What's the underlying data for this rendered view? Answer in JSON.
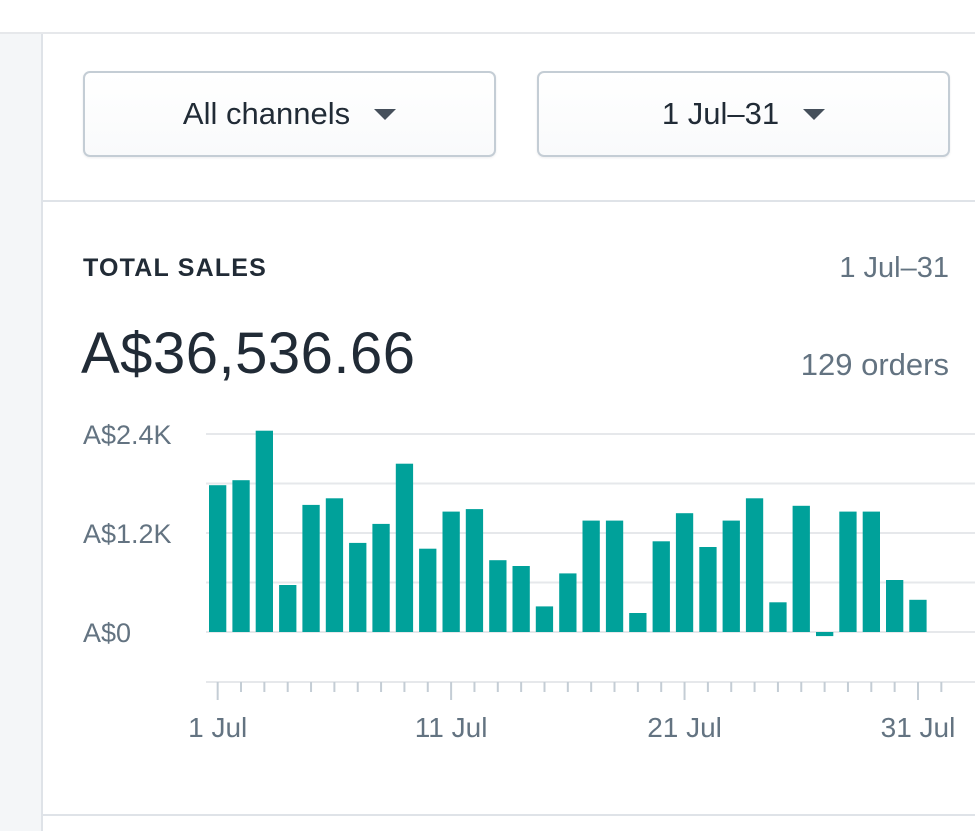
{
  "filters": {
    "channel_label": "All channels",
    "range_label": "1 Jul–31"
  },
  "card": {
    "title": "TOTAL SALES",
    "range": "1 Jul–31",
    "total": "A$36,536.66",
    "orders": "129 orders"
  },
  "colors": {
    "bar": "#00a19a",
    "grid": "#e6e8eb",
    "axis": "#c4cdd5"
  },
  "chart_data": {
    "type": "bar",
    "x_label_positions": [
      1,
      11,
      21,
      31
    ],
    "x_labels": [
      "1 Jul",
      "11 Jul",
      "21 Jul",
      "31 Jul"
    ],
    "y_ticks": [
      {
        "value": 0,
        "label": "A$0"
      },
      {
        "value": 1200,
        "label": "A$1.2K"
      },
      {
        "value": 2400,
        "label": "A$2.4K"
      }
    ],
    "ylim": [
      0,
      2400
    ],
    "categories": [
      1,
      2,
      3,
      4,
      5,
      6,
      7,
      8,
      9,
      10,
      11,
      12,
      13,
      14,
      15,
      16,
      17,
      18,
      19,
      20,
      21,
      22,
      23,
      24,
      25,
      26,
      27,
      28,
      29,
      30,
      31,
      32
    ],
    "values": [
      1780,
      1840,
      2440,
      570,
      1540,
      1620,
      1080,
      1310,
      2040,
      1010,
      1460,
      1490,
      870,
      800,
      310,
      710,
      1350,
      1350,
      230,
      1100,
      1440,
      1030,
      1350,
      1620,
      360,
      1530,
      -50,
      1460,
      1460,
      630,
      390,
      0
    ]
  }
}
